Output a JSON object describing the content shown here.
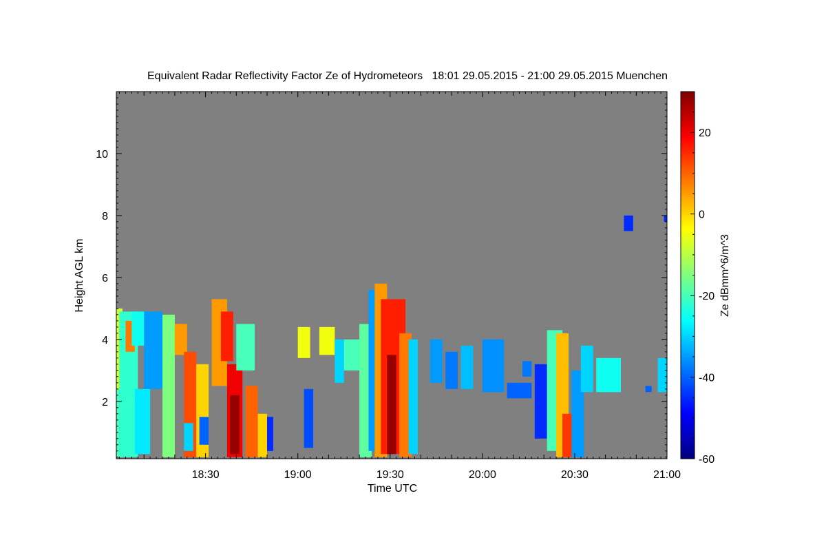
{
  "chart_data": {
    "type": "heatmap",
    "title": "Equivalent Radar Reflectivity Factor Ze of Hydrometeors   18:01 29.05.2015 - 21:00 29.05.2015 Muenchen",
    "xlabel": "Time UTC",
    "ylabel": "Height AGL km",
    "xlim_minutes": [
      1081,
      1260
    ],
    "ylim_km": [
      0.15,
      12.0
    ],
    "x_tick_labels": [
      {
        "minute": 1110,
        "label": "18:30"
      },
      {
        "minute": 1140,
        "label": "19:00"
      },
      {
        "minute": 1170,
        "label": "19:30"
      },
      {
        "minute": 1200,
        "label": "20:00"
      },
      {
        "minute": 1230,
        "label": "20:30"
      },
      {
        "minute": 1260,
        "label": "21:00"
      }
    ],
    "y_ticks": [
      2,
      4,
      6,
      8,
      10
    ],
    "colorbar": {
      "label": "Ze dBmm^6/m^3",
      "range": [
        -60,
        30
      ],
      "ticks": [
        20,
        0,
        -20,
        -40,
        -60
      ],
      "colormap": "jet",
      "stops": [
        "#00007f",
        "#0000ff",
        "#007fff",
        "#00ffff",
        "#7fff7f",
        "#ffff00",
        "#ff7f00",
        "#ff0000",
        "#7f0000"
      ]
    },
    "background_color": "#808080",
    "cells": [
      {
        "t0": 1081,
        "t1": 1083,
        "h0": 0.2,
        "h1": 5.0,
        "ze": -8
      },
      {
        "t0": 1081,
        "t1": 1084,
        "h0": 0.2,
        "h1": 2.4,
        "ze": -20
      },
      {
        "t0": 1082,
        "t1": 1088,
        "h0": 0.2,
        "h1": 4.9,
        "ze": -22
      },
      {
        "t0": 1084,
        "t1": 1087,
        "h0": 3.6,
        "h1": 4.6,
        "ze": 8
      },
      {
        "t0": 1086,
        "t1": 1092,
        "h0": 3.8,
        "h1": 4.9,
        "ze": -25
      },
      {
        "t0": 1087,
        "t1": 1092,
        "h0": 0.3,
        "h1": 2.4,
        "ze": -28
      },
      {
        "t0": 1090,
        "t1": 1096,
        "h0": 2.4,
        "h1": 4.9,
        "ze": -35
      },
      {
        "t0": 1096,
        "t1": 1100,
        "h0": 0.2,
        "h1": 4.8,
        "ze": -15
      },
      {
        "t0": 1100,
        "t1": 1104,
        "h0": 3.5,
        "h1": 4.5,
        "ze": 5
      },
      {
        "t0": 1103,
        "t1": 1107,
        "h0": 0.2,
        "h1": 3.6,
        "ze": 12
      },
      {
        "t0": 1103,
        "t1": 1106,
        "h0": 0.4,
        "h1": 1.3,
        "ze": -30
      },
      {
        "t0": 1107,
        "t1": 1111,
        "h0": 0.2,
        "h1": 3.2,
        "ze": 0
      },
      {
        "t0": 1108,
        "t1": 1111,
        "h0": 0.6,
        "h1": 1.5,
        "ze": -40
      },
      {
        "t0": 1112,
        "t1": 1117,
        "h0": 2.5,
        "h1": 5.3,
        "ze": 5
      },
      {
        "t0": 1115,
        "t1": 1119,
        "h0": 3.3,
        "h1": 4.9,
        "ze": 16
      },
      {
        "t0": 1117,
        "t1": 1122,
        "h0": 0.2,
        "h1": 3.2,
        "ze": 20
      },
      {
        "t0": 1118,
        "t1": 1121,
        "h0": 0.3,
        "h1": 2.2,
        "ze": 28
      },
      {
        "t0": 1120,
        "t1": 1126,
        "h0": 3.0,
        "h1": 4.5,
        "ze": -20
      },
      {
        "t0": 1123,
        "t1": 1127,
        "h0": 0.2,
        "h1": 2.5,
        "ze": 10
      },
      {
        "t0": 1127,
        "t1": 1130,
        "h0": 0.2,
        "h1": 1.6,
        "ze": 0
      },
      {
        "t0": 1130,
        "t1": 1132,
        "h0": 0.4,
        "h1": 1.5,
        "ze": -45
      },
      {
        "t0": 1140,
        "t1": 1144,
        "h0": 3.4,
        "h1": 4.4,
        "ze": -5
      },
      {
        "t0": 1142,
        "t1": 1145,
        "h0": 0.5,
        "h1": 2.4,
        "ze": -42
      },
      {
        "t0": 1147,
        "t1": 1152,
        "h0": 3.5,
        "h1": 4.4,
        "ze": -5
      },
      {
        "t0": 1152,
        "t1": 1155,
        "h0": 2.6,
        "h1": 4.0,
        "ze": -30
      },
      {
        "t0": 1155,
        "t1": 1160,
        "h0": 3.0,
        "h1": 4.0,
        "ze": -20
      },
      {
        "t0": 1160,
        "t1": 1164,
        "h0": 0.2,
        "h1": 4.5,
        "ze": -18
      },
      {
        "t0": 1163,
        "t1": 1166,
        "h0": 0.4,
        "h1": 5.6,
        "ze": -35
      },
      {
        "t0": 1165,
        "t1": 1169,
        "h0": 0.2,
        "h1": 5.8,
        "ze": 5
      },
      {
        "t0": 1167,
        "t1": 1175,
        "h0": 0.3,
        "h1": 5.3,
        "ze": 16
      },
      {
        "t0": 1169,
        "t1": 1172,
        "h0": 0.3,
        "h1": 3.5,
        "ze": 28
      },
      {
        "t0": 1173,
        "t1": 1177,
        "h0": 0.2,
        "h1": 4.2,
        "ze": 8
      },
      {
        "t0": 1176,
        "t1": 1179,
        "h0": 0.3,
        "h1": 4.0,
        "ze": -30
      },
      {
        "t0": 1183,
        "t1": 1187,
        "h0": 2.6,
        "h1": 4.0,
        "ze": -35
      },
      {
        "t0": 1188,
        "t1": 1192,
        "h0": 2.4,
        "h1": 3.6,
        "ze": -38
      },
      {
        "t0": 1193,
        "t1": 1197,
        "h0": 2.4,
        "h1": 3.8,
        "ze": -32
      },
      {
        "t0": 1200,
        "t1": 1207,
        "h0": 2.3,
        "h1": 4.0,
        "ze": -36
      },
      {
        "t0": 1208,
        "t1": 1216,
        "h0": 2.1,
        "h1": 2.6,
        "ze": -40
      },
      {
        "t0": 1213,
        "t1": 1216,
        "h0": 2.8,
        "h1": 3.3,
        "ze": -38
      },
      {
        "t0": 1217,
        "t1": 1221,
        "h0": 0.8,
        "h1": 3.2,
        "ze": -45
      },
      {
        "t0": 1221,
        "t1": 1226,
        "h0": 0.4,
        "h1": 4.3,
        "ze": -20
      },
      {
        "t0": 1224,
        "t1": 1228,
        "h0": 0.2,
        "h1": 4.2,
        "ze": 2
      },
      {
        "t0": 1226,
        "t1": 1229,
        "h0": 0.2,
        "h1": 1.6,
        "ze": 14
      },
      {
        "t0": 1229,
        "t1": 1233,
        "h0": 0.2,
        "h1": 3.0,
        "ze": -35
      },
      {
        "t0": 1232,
        "t1": 1236,
        "h0": 2.3,
        "h1": 3.8,
        "ze": -30
      },
      {
        "t0": 1237,
        "t1": 1245,
        "h0": 2.3,
        "h1": 3.4,
        "ze": -25
      },
      {
        "t0": 1246,
        "t1": 1249,
        "h0": 7.5,
        "h1": 8.0,
        "ze": -45
      },
      {
        "t0": 1253,
        "t1": 1255,
        "h0": 2.3,
        "h1": 2.5,
        "ze": -40
      },
      {
        "t0": 1257,
        "t1": 1260,
        "h0": 2.3,
        "h1": 3.4,
        "ze": -30
      },
      {
        "t0": 1259,
        "t1": 1260,
        "h0": 7.8,
        "h1": 8.0,
        "ze": -45
      }
    ]
  }
}
